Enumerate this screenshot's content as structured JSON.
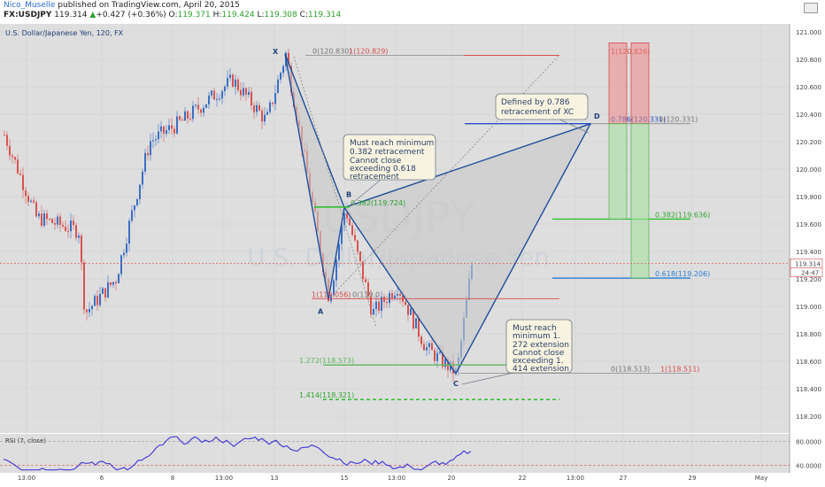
{
  "header": {
    "author": "Nico_Muselle",
    "published": "published on TradingView.com, April 20, 2015",
    "symbol": "FX:USDJPY",
    "last": "119.314",
    "change": "+0.427 (+0.36%)",
    "o_label": "O:",
    "o": "119.371",
    "h_label": "H:",
    "h": "119.424",
    "l_label": "L:",
    "l": "119.308",
    "c_label": "C:",
    "c": "119.314"
  },
  "chart_title": "U.S. Dollar/Japanese Yen, 120, FX",
  "watermark": {
    "line1": "USDJPY",
    "line2": "U.S. Dollar/Japanese Yen"
  },
  "price_axis": {
    "ticks": [
      "121.000",
      "120.800",
      "120.600",
      "120.400",
      "120.200",
      "120.000",
      "119.800",
      "119.600",
      "119.400",
      "119.200",
      "119.000",
      "118.800",
      "118.600",
      "118.400",
      "118.200"
    ],
    "last_price": "119.314",
    "countdown": "24:47"
  },
  "rsi_axis": {
    "ticks": [
      "80.0000",
      "40.0000"
    ]
  },
  "rsi_label": "RSI (7, close)",
  "time_axis": [
    "13:00",
    "6",
    "8",
    "13:00",
    "13",
    "15",
    "13:00",
    "20",
    "22",
    "13:00",
    "27",
    "29",
    "May"
  ],
  "pattern_points": [
    {
      "name": "X",
      "price": 120.84
    },
    {
      "name": "A",
      "price": 119.05
    },
    {
      "name": "B",
      "price": 119.72
    },
    {
      "name": "C",
      "price": 118.51
    },
    {
      "name": "D",
      "price": 120.33
    }
  ],
  "fib_labels": {
    "x0": "0(120.830)",
    "x1": "1(120.829)",
    "a1": "1(119.056)",
    "a0": "0(119.0",
    "b382": "0.382(119.724)",
    "c1272": "1.272(118.573)",
    "c1414": "1.414(118.321)",
    "d786": "0.786(120.331)",
    "d0": "0(120.331)",
    "c0": "0(118.513)",
    "c1": "1(118.511)",
    "t1": "1(120.826)",
    "t382": "0.382(119.636)",
    "t618": "0.618(119.206)"
  },
  "annotations": {
    "b_note": [
      "Must reach minimum",
      "0.382 retracement",
      "Cannot close",
      "exceeding 0.618",
      "retracement"
    ],
    "d_note": [
      "Defined by 0.786",
      "retracement of XC"
    ],
    "c_note": [
      "Must reach",
      "minimum 1.",
      "272 extension",
      "Cannot close",
      "exceeding 1.",
      "414 extension"
    ]
  },
  "colors": {
    "up": "#3b6fc4",
    "down": "#d9534f",
    "pattern": "#1f4e9c",
    "fill": "#c8c8c8",
    "green": "#2fbf2f",
    "red": "#d94a4a",
    "blue": "#2a7fd4",
    "rsi": "#4a3fd6"
  },
  "chart_data": {
    "type": "line",
    "title": "U.S. Dollar/Japanese Yen, 120, FX",
    "ylim": [
      118.15,
      121.05
    ],
    "x": [
      "X",
      "A",
      "B",
      "C",
      "D"
    ],
    "series": [
      {
        "values": [
          120.84,
          119.05,
          119.72,
          118.51,
          120.33
        ]
      }
    ],
    "levels": [
      120.829,
      119.724,
      119.056,
      118.573,
      118.321,
      120.331,
      118.513,
      120.826,
      119.636,
      119.206
    ],
    "rsi_ylim": [
      30,
      90
    ],
    "rsi_levels": [
      80,
      40
    ],
    "legend": "none",
    "grid": true
  }
}
